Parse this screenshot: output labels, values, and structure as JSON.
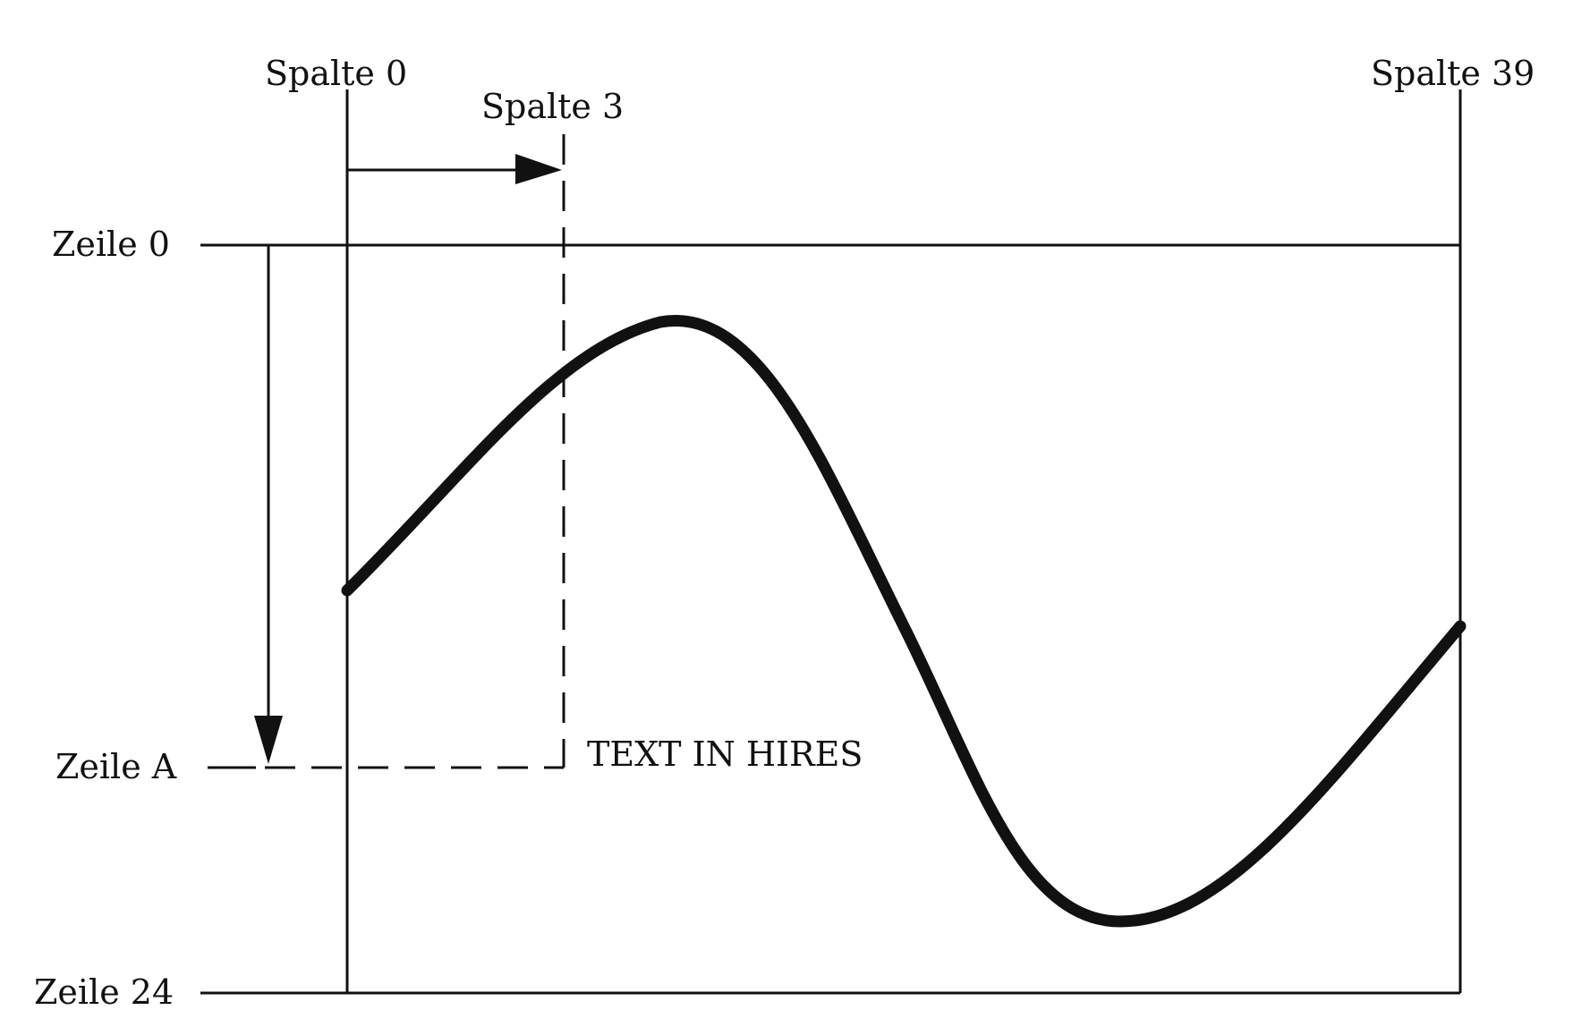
{
  "labels": {
    "spalte_0": "Spalte 0",
    "spalte_3": "Spalte 3",
    "spalte_39": "Spalte 39",
    "zeile_0": "Zeile 0",
    "zeile_a": "Zeile A",
    "zeile_24": "Zeile 24",
    "text_in_hires": "TEXT IN HIRES"
  }
}
